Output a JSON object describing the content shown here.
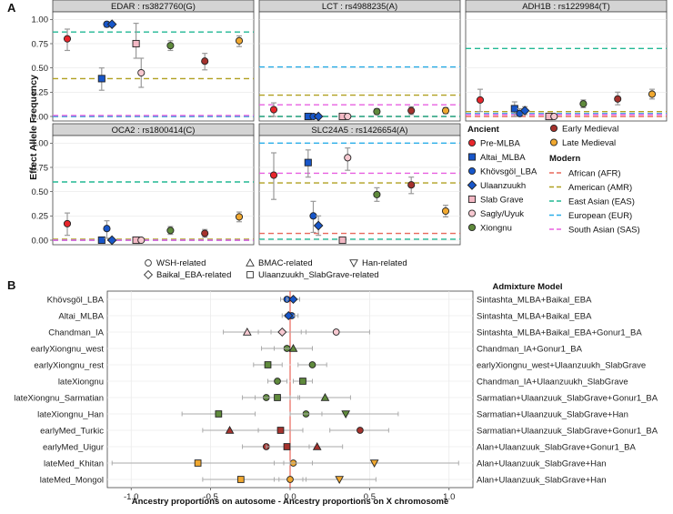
{
  "panel_labels": {
    "a": "A",
    "b": "B"
  },
  "chart_data": [
    {
      "type": "scatter",
      "id": "A",
      "ylabel": "Effect Allele Frequency",
      "ylim": [
        0,
        1.05
      ],
      "yticks": [
        "0.00",
        "0.25",
        "0.50",
        "0.75",
        "1.00"
      ],
      "ytick_values": [
        0,
        0.25,
        0.5,
        0.75,
        1.0
      ],
      "facets": [
        {
          "title": "EDAR : rs3827760(G)",
          "modern": {
            "AFR": 0.0,
            "AMR": 0.39,
            "EAS": 0.87,
            "EUR": 0.0,
            "SAS": 0.01
          },
          "points": [
            {
              "group": "Pre-MLBA",
              "x": 1,
              "y": 0.8,
              "lo": 0.68,
              "hi": 0.9
            },
            {
              "group": "Altai_MLBA",
              "x": 2,
              "y": 0.39,
              "lo": 0.27,
              "hi": 0.5
            },
            {
              "group": "Khövsgöl_LBA",
              "x": 2.15,
              "y": 0.95,
              "lo": 0.92,
              "hi": 0.97
            },
            {
              "group": "Ulaanzuukh",
              "x": 2.3,
              "y": 0.95,
              "lo": 0.93,
              "hi": 0.97
            },
            {
              "group": "Slab Grave",
              "x": 3,
              "y": 0.75,
              "lo": 0.6,
              "hi": 0.96
            },
            {
              "group": "Sagly/Uyuk",
              "x": 3.15,
              "y": 0.45,
              "lo": 0.3,
              "hi": 0.6
            },
            {
              "group": "Xiongnu",
              "x": 4,
              "y": 0.73,
              "lo": 0.68,
              "hi": 0.78
            },
            {
              "group": "Early Medieval",
              "x": 5,
              "y": 0.57,
              "lo": 0.48,
              "hi": 0.65
            },
            {
              "group": "Late Medieval",
              "x": 6,
              "y": 0.78,
              "lo": 0.72,
              "hi": 0.83
            }
          ]
        },
        {
          "title": "LCT : rs4988235(A)",
          "modern": {
            "AFR": 0.0,
            "AMR": 0.22,
            "EAS": 0.0,
            "EUR": 0.51,
            "SAS": 0.12
          },
          "points": [
            {
              "group": "Pre-MLBA",
              "x": 1,
              "y": 0.07,
              "lo": 0.0,
              "hi": 0.14
            },
            {
              "group": "Altai_MLBA",
              "x": 2,
              "y": 0.0,
              "lo": 0.0,
              "hi": 0.0
            },
            {
              "group": "Khövsgöl_LBA",
              "x": 2.15,
              "y": 0.0,
              "lo": 0.0,
              "hi": 0.0
            },
            {
              "group": "Ulaanzuukh",
              "x": 2.3,
              "y": 0.0,
              "lo": 0.0,
              "hi": 0.0
            },
            {
              "group": "Slab Grave",
              "x": 3,
              "y": 0.0,
              "lo": 0.0,
              "hi": 0.0
            },
            {
              "group": "Sagly/Uyuk",
              "x": 3.15,
              "y": 0.0,
              "lo": 0.0,
              "hi": 0.0
            },
            {
              "group": "Xiongnu",
              "x": 4,
              "y": 0.05,
              "lo": 0.02,
              "hi": 0.08
            },
            {
              "group": "Early Medieval",
              "x": 5,
              "y": 0.06,
              "lo": 0.02,
              "hi": 0.1
            },
            {
              "group": "Late Medieval",
              "x": 6,
              "y": 0.06,
              "lo": 0.03,
              "hi": 0.09
            }
          ]
        },
        {
          "title": "ADH1B : rs1229984(T)",
          "modern": {
            "AFR": 0.0,
            "AMR": 0.05,
            "EAS": 0.7,
            "EUR": 0.03,
            "SAS": 0.02
          },
          "points": [
            {
              "group": "Pre-MLBA",
              "x": 1,
              "y": 0.17,
              "lo": 0.05,
              "hi": 0.28
            },
            {
              "group": "Altai_MLBA",
              "x": 2,
              "y": 0.08,
              "lo": 0.0,
              "hi": 0.15
            },
            {
              "group": "Khövsgöl_LBA",
              "x": 2.15,
              "y": 0.03,
              "lo": 0.0,
              "hi": 0.08
            },
            {
              "group": "Ulaanzuukh",
              "x": 2.3,
              "y": 0.06,
              "lo": 0.02,
              "hi": 0.1
            },
            {
              "group": "Slab Grave",
              "x": 3,
              "y": 0.0,
              "lo": 0.0,
              "hi": 0.0
            },
            {
              "group": "Sagly/Uyuk",
              "x": 3.15,
              "y": 0.0,
              "lo": 0.0,
              "hi": 0.0
            },
            {
              "group": "Xiongnu",
              "x": 4,
              "y": 0.13,
              "lo": 0.09,
              "hi": 0.17
            },
            {
              "group": "Early Medieval",
              "x": 5,
              "y": 0.18,
              "lo": 0.12,
              "hi": 0.25
            },
            {
              "group": "Late Medieval",
              "x": 6,
              "y": 0.23,
              "lo": 0.18,
              "hi": 0.28
            }
          ]
        },
        {
          "title": "OCA2 : rs1800414(C)",
          "modern": {
            "AFR": 0.0,
            "AMR": 0.01,
            "EAS": 0.6,
            "EUR": 0.0,
            "SAS": 0.0
          },
          "points": [
            {
              "group": "Pre-MLBA",
              "x": 1,
              "y": 0.17,
              "lo": 0.05,
              "hi": 0.28
            },
            {
              "group": "Altai_MLBA",
              "x": 2,
              "y": 0.0,
              "lo": 0.0,
              "hi": 0.0
            },
            {
              "group": "Khövsgöl_LBA",
              "x": 2.15,
              "y": 0.12,
              "lo": 0.02,
              "hi": 0.2
            },
            {
              "group": "Ulaanzuukh",
              "x": 2.3,
              "y": 0.0,
              "lo": 0.0,
              "hi": 0.0
            },
            {
              "group": "Slab Grave",
              "x": 3,
              "y": 0.0,
              "lo": 0.0,
              "hi": 0.0
            },
            {
              "group": "Sagly/Uyuk",
              "x": 3.15,
              "y": 0.0,
              "lo": 0.0,
              "hi": 0.0
            },
            {
              "group": "Xiongnu",
              "x": 4,
              "y": 0.1,
              "lo": 0.06,
              "hi": 0.14
            },
            {
              "group": "Early Medieval",
              "x": 5,
              "y": 0.07,
              "lo": 0.03,
              "hi": 0.11
            },
            {
              "group": "Late Medieval",
              "x": 6,
              "y": 0.24,
              "lo": 0.19,
              "hi": 0.29
            }
          ]
        },
        {
          "title": "SLC24A5 : rs1426654(A)",
          "modern": {
            "AFR": 0.07,
            "AMR": 0.59,
            "EAS": 0.01,
            "EUR": 1.0,
            "SAS": 0.69
          },
          "points": [
            {
              "group": "Pre-MLBA",
              "x": 1,
              "y": 0.67,
              "lo": 0.42,
              "hi": 0.9
            },
            {
              "group": "Altai_MLBA",
              "x": 2,
              "y": 0.8,
              "lo": 0.65,
              "hi": 0.93
            },
            {
              "group": "Khövsgöl_LBA",
              "x": 2.15,
              "y": 0.25,
              "lo": 0.08,
              "hi": 0.4
            },
            {
              "group": "Ulaanzuukh",
              "x": 2.3,
              "y": 0.15,
              "lo": 0.05,
              "hi": 0.25
            },
            {
              "group": "Slab Grave",
              "x": 3,
              "y": 0.0,
              "lo": 0.0,
              "hi": 0.0
            },
            {
              "group": "Sagly/Uyuk",
              "x": 3.15,
              "y": 0.85,
              "lo": 0.72,
              "hi": 0.95
            },
            {
              "group": "Xiongnu",
              "x": 4,
              "y": 0.47,
              "lo": 0.4,
              "hi": 0.54
            },
            {
              "group": "Early Medieval",
              "x": 5,
              "y": 0.57,
              "lo": 0.48,
              "hi": 0.65
            },
            {
              "group": "Late Medieval",
              "x": 6,
              "y": 0.3,
              "lo": 0.24,
              "hi": 0.36
            }
          ]
        }
      ],
      "legend": {
        "ancient_title": "Ancient",
        "modern_title": "Modern",
        "ancient": [
          {
            "label": "Pre-MLBA",
            "shape": "circle",
            "color": "#e8262c"
          },
          {
            "label": "Altai_MLBA",
            "shape": "square",
            "color": "#1756c9"
          },
          {
            "label": "Khövsgöl_LBA",
            "shape": "circle",
            "color": "#1756c9"
          },
          {
            "label": "Ulaanzuukh",
            "shape": "diamond",
            "color": "#1756c9"
          },
          {
            "label": "Slab Grave",
            "shape": "square",
            "color": "#f3b8c4"
          },
          {
            "label": "Sagly/Uyuk",
            "shape": "circle",
            "color": "#f6c8d0"
          },
          {
            "label": "Xiongnu",
            "shape": "circle",
            "color": "#5f8a3c"
          }
        ],
        "ancient_col2": [
          {
            "label": "Early Medieval",
            "shape": "circle",
            "color": "#a5322d"
          },
          {
            "label": "Late Medieval",
            "shape": "circle",
            "color": "#f0a830"
          }
        ],
        "modern": [
          {
            "key": "AFR",
            "label": "African (AFR)",
            "color": "#e8685c"
          },
          {
            "key": "AMR",
            "label": "American (AMR)",
            "color": "#b0a020"
          },
          {
            "key": "EAS",
            "label": "East Asian (EAS)",
            "color": "#22b894"
          },
          {
            "key": "EUR",
            "label": "European (EUR)",
            "color": "#2aaee8"
          },
          {
            "key": "SAS",
            "label": "South Asian (SAS)",
            "color": "#e860e0"
          }
        ]
      }
    },
    {
      "type": "scatter",
      "id": "B",
      "xlabel": "Ancestry proportions on autosome - Ancestry proportions on X chromosome",
      "xlim": [
        -1.15,
        1.15
      ],
      "xticks": [
        "-1.0",
        "-0.5",
        "0.0",
        "0.5",
        "1.0"
      ],
      "xtick_values": [
        -1.0,
        -0.5,
        0.0,
        0.5,
        1.0
      ],
      "right_title": "Admixture Model",
      "shape_legend": [
        {
          "label": "WSH-related",
          "shape": "circle"
        },
        {
          "label": "BMAC-related",
          "shape": "triangle-up"
        },
        {
          "label": "Han-related",
          "shape": "triangle-down"
        },
        {
          "label": "Baikal_EBA-related",
          "shape": "diamond"
        },
        {
          "label": "Ulaanzuukh_SlabGrave-related",
          "shape": "square"
        }
      ],
      "rows": [
        {
          "label": "Khövsgöl_LBA",
          "model": "Sintashta_MLBA+Baikal_EBA",
          "color": "#1756c9",
          "points": [
            {
              "shape": "circle",
              "x": -0.02,
              "lo": -0.06,
              "hi": 0.02
            },
            {
              "shape": "diamond",
              "x": 0.02,
              "lo": -0.02,
              "hi": 0.06
            }
          ]
        },
        {
          "label": "Altai_MLBA",
          "model": "Sintashta_MLBA+Baikal_EBA",
          "color": "#1756c9",
          "points": [
            {
              "shape": "circle",
              "x": 0.01,
              "lo": -0.03,
              "hi": 0.05
            },
            {
              "shape": "diamond",
              "x": -0.01,
              "lo": -0.05,
              "hi": 0.03
            }
          ]
        },
        {
          "label": "Chandman_IA",
          "model": "Sintashta_MLBA+Baikal_EBA+Gonur1_BA",
          "color": "#f6c8d0",
          "points": [
            {
              "shape": "circle",
              "x": 0.29,
              "lo": 0.07,
              "hi": 0.5
            },
            {
              "shape": "triangle-up",
              "x": -0.27,
              "lo": -0.42,
              "hi": -0.12
            },
            {
              "shape": "diamond",
              "x": -0.05,
              "lo": -0.2,
              "hi": 0.1
            }
          ]
        },
        {
          "label": "earlyXiongnu_west",
          "model": "Chandman_IA+Gonur1_BA",
          "color": "#5f8a3c",
          "points": [
            {
              "shape": "circle",
              "x": -0.02,
              "lo": -0.18,
              "hi": 0.14
            },
            {
              "shape": "triangle-up",
              "x": 0.02,
              "lo": -0.1,
              "hi": 0.14
            }
          ]
        },
        {
          "label": "earlyXiongnu_rest",
          "model": "earlyXiongnu_west+Ulaanzuukh_SlabGrave",
          "color": "#5f8a3c",
          "points": [
            {
              "shape": "circle",
              "x": 0.14,
              "lo": 0.05,
              "hi": 0.23
            },
            {
              "shape": "square",
              "x": -0.14,
              "lo": -0.23,
              "hi": -0.05
            }
          ]
        },
        {
          "label": "lateXiongnu",
          "model": "Chandman_IA+Ulaanzuukh_SlabGrave",
          "color": "#5f8a3c",
          "points": [
            {
              "shape": "circle",
              "x": -0.08,
              "lo": -0.14,
              "hi": -0.02
            },
            {
              "shape": "square",
              "x": 0.08,
              "lo": 0.02,
              "hi": 0.14
            }
          ]
        },
        {
          "label": "lateXiongnu_Sarmatian",
          "model": "Sarmatian+Ulaanzuuk_SlabGrave+Gonur1_BA",
          "color": "#5f8a3c",
          "points": [
            {
              "shape": "circle",
              "x": -0.15,
              "lo": -0.3,
              "hi": 0.0
            },
            {
              "shape": "triangle-up",
              "x": 0.22,
              "lo": 0.05,
              "hi": 0.38
            },
            {
              "shape": "square",
              "x": -0.08,
              "lo": -0.22,
              "hi": 0.06
            }
          ]
        },
        {
          "label": "lateXiongnu_Han",
          "model": "Sarmatian+Ulaanzuuk_SlabGrave+Han",
          "color": "#5f8a3c",
          "points": [
            {
              "shape": "circle",
              "x": 0.1,
              "lo": 0.0,
              "hi": 0.2
            },
            {
              "shape": "triangle-down",
              "x": 0.35,
              "lo": 0.0,
              "hi": 0.68
            },
            {
              "shape": "square",
              "x": -0.45,
              "lo": -0.68,
              "hi": -0.22
            }
          ]
        },
        {
          "label": "earlyMed_Turkic",
          "model": "Sarmatian+Ulaanzuuk_SlabGrave+Gonur1_BA",
          "color": "#a5322d",
          "points": [
            {
              "shape": "circle",
              "x": 0.44,
              "lo": 0.25,
              "hi": 0.62
            },
            {
              "shape": "triangle-up",
              "x": -0.38,
              "lo": -0.55,
              "hi": -0.2
            },
            {
              "shape": "square",
              "x": -0.06,
              "lo": -0.2,
              "hi": 0.08
            }
          ]
        },
        {
          "label": "earlyMed_Uigur",
          "model": "Alan+Ulaanzuuk_SlabGrave+Gonur1_BA",
          "color": "#a5322d",
          "points": [
            {
              "shape": "circle",
              "x": -0.15,
              "lo": -0.3,
              "hi": 0.0
            },
            {
              "shape": "triangle-up",
              "x": 0.17,
              "lo": 0.0,
              "hi": 0.33
            },
            {
              "shape": "square",
              "x": -0.02,
              "lo": -0.15,
              "hi": 0.12
            }
          ]
        },
        {
          "label": "lateMed_Khitan",
          "model": "Alan+Ulaanzuuk_SlabGrave+Han",
          "color": "#f0a830",
          "points": [
            {
              "shape": "circle",
              "x": 0.02,
              "lo": -0.1,
              "hi": 0.14
            },
            {
              "shape": "triangle-down",
              "x": 0.53,
              "lo": 0.0,
              "hi": 1.06
            },
            {
              "shape": "square",
              "x": -0.58,
              "lo": -1.12,
              "hi": -0.04
            }
          ]
        },
        {
          "label": "lateMed_Mongol",
          "model": "Alan+Ulaanzuuk_SlabGrave+Han",
          "color": "#f0a830",
          "points": [
            {
              "shape": "circle",
              "x": 0.0,
              "lo": -0.1,
              "hi": 0.1
            },
            {
              "shape": "triangle-down",
              "x": 0.31,
              "lo": 0.08,
              "hi": 0.54
            },
            {
              "shape": "square",
              "x": -0.31,
              "lo": -0.55,
              "hi": -0.07
            }
          ]
        }
      ]
    }
  ]
}
